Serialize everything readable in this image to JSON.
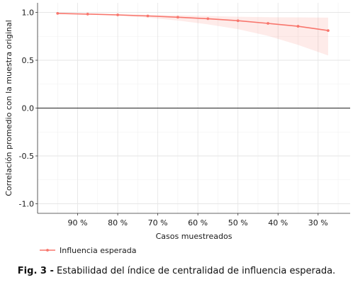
{
  "chart_data": {
    "type": "line",
    "title": "",
    "xlabel": "Casos muestreados",
    "ylabel": "Correlación promedio con la muestra original",
    "x": [
      95,
      87.5,
      80,
      72.5,
      65,
      57.5,
      50,
      42.5,
      35,
      27.5
    ],
    "xlim": [
      100,
      22
    ],
    "x_reversed": true,
    "x_ticks": [
      90,
      80,
      70,
      60,
      50,
      40,
      30
    ],
    "x_tick_labels": [
      "90 %",
      "80 %",
      "70 %",
      "60 %",
      "50 %",
      "40 %",
      "30 %"
    ],
    "ylim": [
      -1.1,
      1.1
    ],
    "y_ticks": [
      1.0,
      0.5,
      0.0,
      -0.5,
      -1.0
    ],
    "y_tick_labels": [
      "1.0",
      "0.5",
      "0.0",
      "-0.5",
      "-1.0"
    ],
    "grid": true,
    "zero_line": true,
    "series": [
      {
        "name": "Influencia esperada",
        "values": [
          0.99,
          0.982,
          0.974,
          0.963,
          0.95,
          0.934,
          0.913,
          0.885,
          0.855,
          0.81
        ],
        "lower": [
          0.99,
          0.978,
          0.965,
          0.945,
          0.915,
          0.875,
          0.825,
          0.755,
          0.66,
          0.55
        ],
        "upper": [
          0.99,
          0.986,
          0.98,
          0.975,
          0.97,
          0.963,
          0.955,
          0.95,
          0.948,
          0.945
        ],
        "color": "#f8766d",
        "band_color": "#f8766d"
      }
    ],
    "legend_position": "bottom-left"
  },
  "caption": {
    "label": "Fig. 3 -",
    "text": "Estabilidad del índice de centralidad de influencia esperada."
  }
}
